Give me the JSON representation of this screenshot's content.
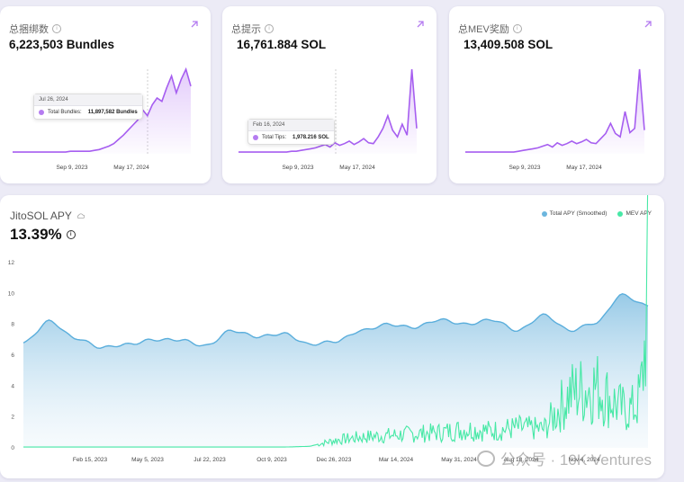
{
  "cards": [
    {
      "title": "总捆绑数",
      "value": "6,223,503 Bundles",
      "x_ticks": [
        "Sep 9, 2023",
        "May 17, 2024"
      ],
      "tooltip": {
        "date": "Jul 26, 2024",
        "label": "Total Bundles:",
        "value": "11,897,582 Bundles"
      },
      "series": [
        0.02,
        0.02,
        0.02,
        0.02,
        0.02,
        0.02,
        0.02,
        0.02,
        0.02,
        0.02,
        0.02,
        0.02,
        0.03,
        0.03,
        0.03,
        0.03,
        0.03,
        0.04,
        0.05,
        0.07,
        0.09,
        0.12,
        0.17,
        0.22,
        0.28,
        0.34,
        0.4,
        0.52,
        0.45,
        0.58,
        0.66,
        0.62,
        0.78,
        0.92,
        0.72,
        0.88,
        1.0,
        0.8
      ]
    },
    {
      "title": "总提示",
      "value": "16,761.884 SOL",
      "x_ticks": [
        "Sep 9, 2023",
        "May 17, 2024"
      ],
      "tooltip": {
        "date": "Feb 16, 2024",
        "label": "Total Tips:",
        "value": "1,978.216 SOL"
      },
      "series": [
        0.02,
        0.02,
        0.02,
        0.02,
        0.02,
        0.02,
        0.02,
        0.02,
        0.02,
        0.02,
        0.02,
        0.03,
        0.03,
        0.04,
        0.05,
        0.06,
        0.07,
        0.09,
        0.11,
        0.08,
        0.13,
        0.1,
        0.12,
        0.15,
        0.11,
        0.14,
        0.18,
        0.13,
        0.12,
        0.2,
        0.3,
        0.45,
        0.28,
        0.2,
        0.35,
        0.22,
        1.0,
        0.3
      ]
    },
    {
      "title": "总MEV奖励",
      "value": "13,409.508 SOL",
      "x_ticks": [
        "Sep 9, 2023",
        "May 17, 2024"
      ],
      "tooltip": null,
      "series": [
        0.02,
        0.02,
        0.02,
        0.02,
        0.02,
        0.02,
        0.02,
        0.02,
        0.02,
        0.02,
        0.02,
        0.03,
        0.04,
        0.05,
        0.06,
        0.07,
        0.09,
        0.11,
        0.08,
        0.13,
        0.1,
        0.12,
        0.15,
        0.12,
        0.14,
        0.17,
        0.13,
        0.12,
        0.18,
        0.24,
        0.36,
        0.24,
        0.2,
        0.5,
        0.25,
        0.3,
        1.0,
        0.28
      ]
    }
  ],
  "main": {
    "title": "JitoSOL APY",
    "value": "13.39%",
    "legend": [
      {
        "name": "Total APY (Smoothed)",
        "color": "#6cb6de"
      },
      {
        "name": "MEV APY",
        "color": "#47e8a6"
      }
    ]
  },
  "watermark": "公众号 · 10K Ventures",
  "chart_data": {
    "type": "area",
    "title": "JitoSOL APY",
    "xlabel": "",
    "ylabel": "",
    "ylim": [
      0,
      12
    ],
    "y_ticks": [
      "12",
      "10",
      "8",
      "6",
      "4",
      "2",
      "0"
    ],
    "x_ticks": [
      "Feb 15, 2023",
      "May 5, 2023",
      "Jul 22, 2023",
      "Oct 9, 2023",
      "Dec 26, 2023",
      "Mar 14, 2024",
      "May 31, 2024",
      "Aug 18, 2024",
      "Nov 4, 2024"
    ],
    "x": [
      "Dec 2022",
      "Jan 2023",
      "Feb 2023",
      "Mar 2023",
      "Apr 2023",
      "May 2023",
      "Jun 2023",
      "Jul 2023",
      "Aug 2023",
      "Sep 2023",
      "Oct 2023",
      "Nov 2023",
      "Dec 2023",
      "Jan 2024",
      "Feb 2024",
      "Mar 2024",
      "Apr 2024",
      "May 2024",
      "Jun 2024",
      "Jul 2024",
      "Aug 2024",
      "Sep 2024",
      "Oct 2024",
      "Nov 2024",
      "Dec 2024"
    ],
    "series": [
      {
        "name": "Total APY (Smoothed)",
        "values": [
          6.8,
          8.2,
          7.1,
          6.5,
          6.7,
          7.0,
          7.0,
          6.6,
          7.6,
          7.2,
          7.4,
          6.7,
          6.9,
          7.6,
          8.0,
          7.8,
          8.3,
          8.0,
          8.3,
          7.6,
          8.6,
          7.6,
          8.1,
          9.9,
          9.2
        ]
      },
      {
        "name": "MEV APY",
        "values": [
          0.05,
          0.05,
          0.05,
          0.05,
          0.05,
          0.05,
          0.05,
          0.05,
          0.05,
          0.05,
          0.05,
          0.1,
          0.5,
          0.7,
          0.8,
          0.9,
          1.0,
          1.2,
          1.1,
          1.3,
          1.2,
          3.5,
          4.0,
          2.5,
          11.7
        ]
      }
    ],
    "legend_position": "top-right",
    "grid": false
  }
}
